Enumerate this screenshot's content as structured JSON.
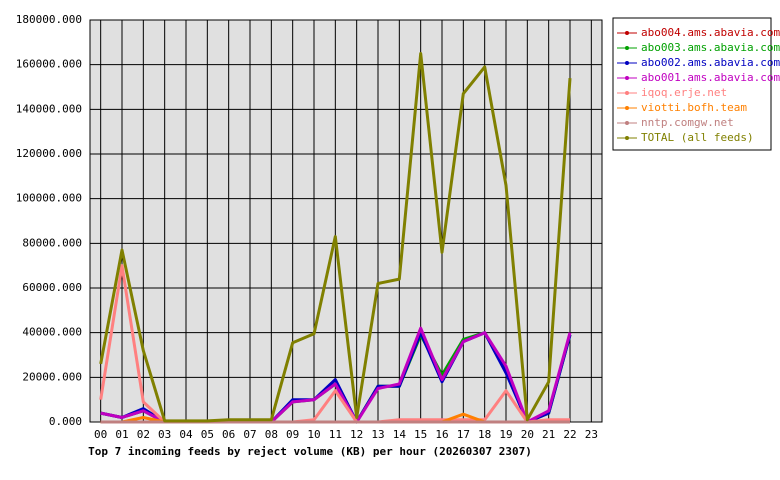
{
  "chart_data": {
    "type": "line",
    "title": "Top 7 incoming feeds by reject volume (KB) per hour (20260307 2307)",
    "categories": [
      "00",
      "01",
      "02",
      "03",
      "04",
      "05",
      "06",
      "07",
      "08",
      "09",
      "10",
      "11",
      "12",
      "13",
      "14",
      "15",
      "16",
      "17",
      "18",
      "19",
      "20",
      "21",
      "22",
      "23"
    ],
    "ylim": [
      0,
      180000
    ],
    "yticks": [
      {
        "value": 0,
        "label": "0.000"
      },
      {
        "value": 20000,
        "label": "20000.000"
      },
      {
        "value": 40000,
        "label": "40000.000"
      },
      {
        "value": 60000,
        "label": "60000.000"
      },
      {
        "value": 80000,
        "label": "80000.000"
      },
      {
        "value": 100000,
        "label": "100000.000"
      },
      {
        "value": 120000,
        "label": "120000.000"
      },
      {
        "value": 140000,
        "label": "140000.000"
      },
      {
        "value": 160000,
        "label": "160000.000"
      },
      {
        "value": 180000,
        "label": "180000.000"
      }
    ],
    "grid": true,
    "legend": "top-right",
    "series": [
      {
        "name": "abo004.ams.abavia.com",
        "color": "#c00000",
        "values": [
          0,
          0,
          0,
          0,
          0,
          0,
          0,
          0,
          0,
          0,
          0,
          0,
          0,
          0,
          0,
          0,
          0,
          0,
          0,
          0,
          0,
          0,
          0,
          null
        ]
      },
      {
        "name": "abo003.ams.abavia.com",
        "color": "#00a000",
        "values": [
          4000,
          2000,
          5000,
          0,
          0,
          0,
          0,
          0,
          0,
          9000,
          10000,
          17000,
          0,
          16000,
          16000,
          39000,
          21000,
          37000,
          40000,
          23000,
          0,
          4000,
          39000,
          null
        ]
      },
      {
        "name": "abo002.ams.abavia.com",
        "color": "#0000c0",
        "values": [
          4000,
          2000,
          6000,
          0,
          0,
          0,
          0,
          0,
          0,
          10000,
          10000,
          19000,
          0,
          16000,
          16000,
          40000,
          18000,
          36000,
          40000,
          22000,
          0,
          4000,
          39000,
          null
        ]
      },
      {
        "name": "abo001.ams.abavia.com",
        "color": "#c000c0",
        "values": [
          4000,
          2000,
          5000,
          0,
          0,
          0,
          0,
          0,
          0,
          9000,
          10000,
          17000,
          0,
          15000,
          17000,
          42000,
          19000,
          36000,
          40000,
          25000,
          0,
          5000,
          40000,
          null
        ]
      },
      {
        "name": "iqoq.erje.net",
        "color": "#ff8080",
        "values": [
          10000,
          70000,
          9000,
          0,
          0,
          0,
          0,
          0,
          0,
          0,
          1000,
          14000,
          0,
          0,
          1000,
          1000,
          1000,
          1000,
          1000,
          14000,
          0,
          1000,
          1000,
          null
        ]
      },
      {
        "name": "viotti.bofh.team",
        "color": "#ff8000",
        "values": [
          0,
          0,
          2000,
          0,
          0,
          0,
          0,
          0,
          0,
          0,
          0,
          0,
          0,
          0,
          0,
          0,
          0,
          3500,
          0,
          0,
          0,
          0,
          0,
          null
        ]
      },
      {
        "name": "nntp.comgw.net",
        "color": "#c08080",
        "values": [
          0,
          0,
          0,
          0,
          0,
          0,
          0,
          0,
          0,
          0,
          0,
          0,
          0,
          0,
          0,
          0,
          0,
          0,
          0,
          0,
          0,
          0,
          0,
          null
        ]
      },
      {
        "name": "TOTAL (all feeds)",
        "color": "#808000",
        "values": [
          26000,
          77000,
          32000,
          500,
          500,
          500,
          1000,
          1000,
          1000,
          35500,
          39500,
          83000,
          2000,
          62000,
          64000,
          165000,
          76000,
          147000,
          159000,
          106000,
          1000,
          18000,
          154000,
          null
        ]
      }
    ]
  }
}
